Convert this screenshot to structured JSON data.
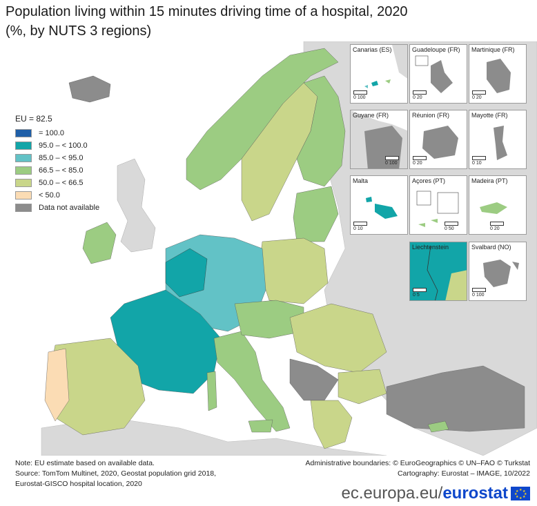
{
  "title": "Population living within 15 minutes driving time of a hospital, 2020",
  "subtitle": "(%, by NUTS 3 regions)",
  "legend": {
    "eu_value": "EU = 82.5",
    "classes": [
      {
        "label": "= 100.0",
        "color": "#1f5fa8"
      },
      {
        "label": "95.0 – < 100.0",
        "color": "#12a5a8"
      },
      {
        "label": "85.0 – < 95.0",
        "color": "#62c2c6"
      },
      {
        "label": "66.5 – < 85.0",
        "color": "#9ccc82"
      },
      {
        "label": "50.0 – < 66.5",
        "color": "#c9d68a"
      },
      {
        "label": "< 50.0",
        "color": "#fbdcb4"
      },
      {
        "label": "Data not available",
        "color": "#8c8c8c"
      }
    ]
  },
  "insets": [
    {
      "name": "Canarias (ES)",
      "scale": "0  100"
    },
    {
      "name": "Guadeloupe (FR)",
      "scale": "0  20"
    },
    {
      "name": "Martinique (FR)",
      "scale": "0  20"
    },
    {
      "name": "Guyane (FR)",
      "scale": "0  100"
    },
    {
      "name": "Réunion (FR)",
      "scale": "0  20"
    },
    {
      "name": "Mayotte (FR)",
      "scale": "0  10"
    },
    {
      "name": "Malta",
      "scale": "0  10"
    },
    {
      "name": "Açores (PT)",
      "scale": "0  50"
    },
    {
      "name": "Madeira (PT)",
      "scale": "0  20"
    },
    {
      "name": "Liechtenstein",
      "scale": "0  5"
    },
    {
      "name": "Svalbard (NO)",
      "scale": "0  100"
    }
  ],
  "footer": {
    "note": "Note: EU estimate based on available data.",
    "source1": "Source: TomTom Multinet, 2020, Geostat population grid 2018,",
    "source2": "Eurostat-GISCO hospital location, 2020",
    "admin": "Administrative boundaries: © EuroGeographics © UN–FAO © Turkstat",
    "carto": "Cartography: Eurostat – IMAGE, 10/2022"
  },
  "brand": {
    "url": "ec.europa.eu/",
    "name": "eurostat"
  },
  "colors": {
    "sea": "#ffffff",
    "non_eu": "#d9d9d9",
    "border": "#555555"
  }
}
